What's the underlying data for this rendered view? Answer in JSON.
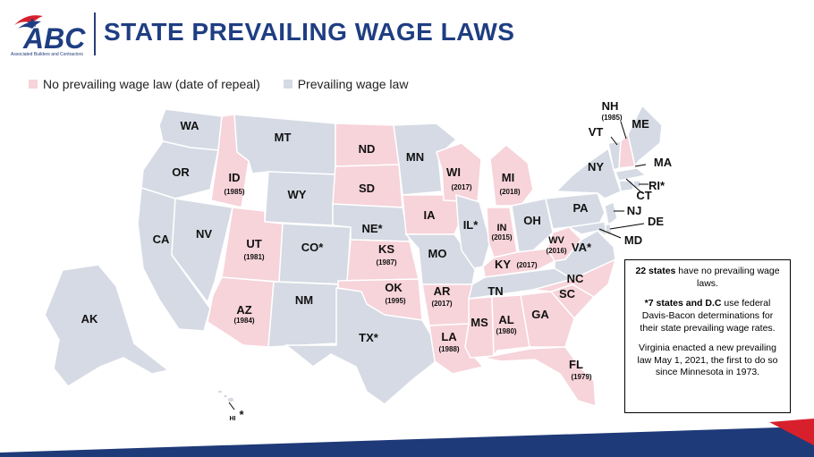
{
  "title": "STATE PREVAILING WAGE LAWS",
  "logo": {
    "text": "ABC",
    "subtitle": "Associated Builders and Contractors"
  },
  "legend": {
    "no_law": "No prevailing wage law (date of repeal)",
    "has_law": "Prevailing wage law"
  },
  "colors": {
    "no_law": "#f7d3da",
    "has_law": "#d5dae4",
    "title": "#1f3e82",
    "bottom_blue": "#1f3a78",
    "bottom_red": "#d8202c"
  },
  "states": {
    "WA": {
      "label": "WA"
    },
    "OR": {
      "label": "OR"
    },
    "CA": {
      "label": "CA"
    },
    "NV": {
      "label": "NV"
    },
    "ID": {
      "label": "ID",
      "year": "(1985)"
    },
    "MT": {
      "label": "MT"
    },
    "WY": {
      "label": "WY"
    },
    "UT": {
      "label": "UT",
      "year": "(1981)"
    },
    "AZ": {
      "label": "AZ",
      "year": "(1984)"
    },
    "CO": {
      "label": "CO*"
    },
    "NM": {
      "label": "NM"
    },
    "ND": {
      "label": "ND"
    },
    "SD": {
      "label": "SD"
    },
    "NE": {
      "label": "NE*"
    },
    "KS": {
      "label": "KS",
      "year": "(1987)"
    },
    "OK": {
      "label": "OK",
      "year": "(1995)"
    },
    "TX": {
      "label": "TX*"
    },
    "MN": {
      "label": "MN"
    },
    "IA": {
      "label": "IA"
    },
    "MO": {
      "label": "MO"
    },
    "AR": {
      "label": "AR",
      "year": "(2017)"
    },
    "LA": {
      "label": "LA",
      "year": "(1988)"
    },
    "WI": {
      "label": "WI",
      "year": "(2017)"
    },
    "IL": {
      "label": "IL*"
    },
    "MI": {
      "label": "MI",
      "year": "(2018)"
    },
    "IN": {
      "label": "IN",
      "year": "(2015)"
    },
    "OH": {
      "label": "OH"
    },
    "KY": {
      "label": "KY",
      "year": "(2017)"
    },
    "TN": {
      "label": "TN"
    },
    "MS": {
      "label": "MS"
    },
    "AL": {
      "label": "AL",
      "year": "(1980)"
    },
    "GA": {
      "label": "GA"
    },
    "FL": {
      "label": "FL",
      "year": "(1979)"
    },
    "SC": {
      "label": "SC"
    },
    "NC": {
      "label": "NC"
    },
    "WV": {
      "label": "WV",
      "year": "(2016)"
    },
    "VA": {
      "label": "VA*"
    },
    "PA": {
      "label": "PA"
    },
    "NY": {
      "label": "NY"
    },
    "VT": {
      "label": "VT"
    },
    "NH": {
      "label": "NH",
      "year": "(1985)"
    },
    "ME": {
      "label": "ME"
    },
    "MA": {
      "label": "MA"
    },
    "RI": {
      "label": "RI*"
    },
    "CT": {
      "label": "CT"
    },
    "NJ": {
      "label": "NJ"
    },
    "DE": {
      "label": "DE"
    },
    "MD": {
      "label": "MD"
    },
    "AK": {
      "label": "AK"
    },
    "HI": {
      "label": "HI",
      "star": "*"
    }
  },
  "note": {
    "p1_bold": "22 states",
    "p1_rest": " have no prevailing wage laws.",
    "p2_bold": "*7 states and D.C",
    "p2_rest": " use federal Davis-Bacon determinations for their state prevailing wage rates.",
    "p3": "Virginia enacted a new prevailing law May 1, 2021, the first to do so since Minnesota in 1973."
  }
}
